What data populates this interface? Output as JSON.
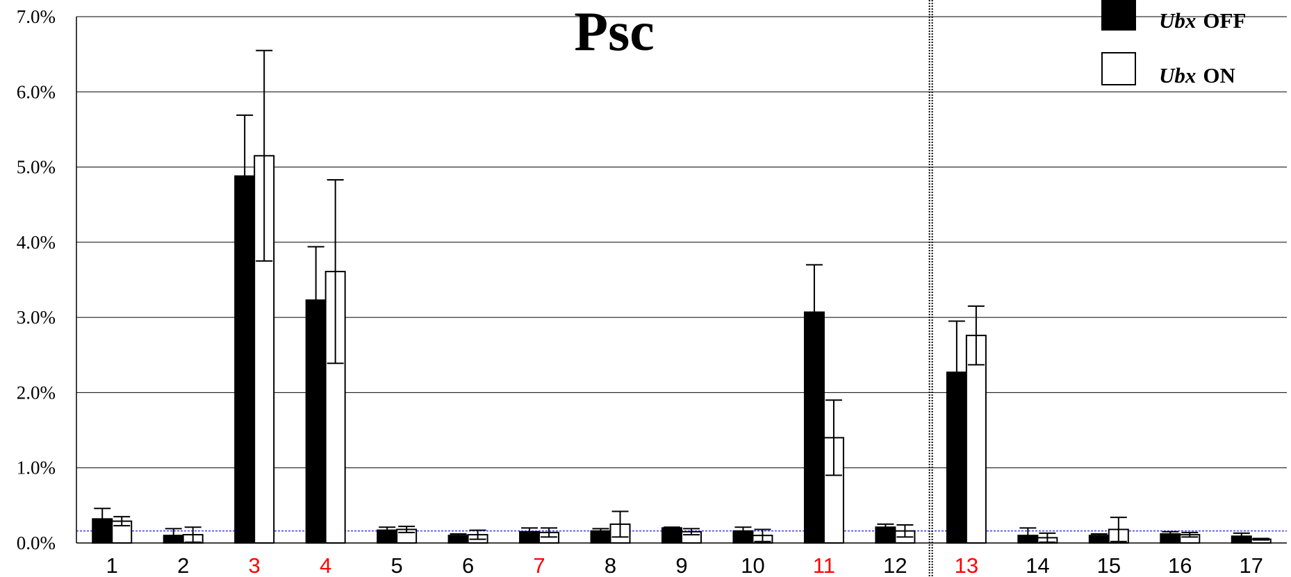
{
  "chart_data": {
    "type": "bar",
    "title": "Psc",
    "xlabel": "",
    "ylabel": "",
    "ylim": [
      0,
      7.0
    ],
    "y_ticks": [
      "0.0%",
      "1.0%",
      "2.0%",
      "3.0%",
      "4.0%",
      "5.0%",
      "6.0%",
      "7.0%"
    ],
    "grid": true,
    "categories": [
      "1",
      "2",
      "3",
      "4",
      "5",
      "6",
      "7",
      "8",
      "9",
      "10",
      "11",
      "12",
      "13",
      "14",
      "15",
      "16",
      "17"
    ],
    "highlighted_categories": [
      "3",
      "4",
      "7",
      "11",
      "13"
    ],
    "highlight_color": "#ff0000",
    "divider_after_category": "12",
    "threshold_line": 0.16,
    "threshold_color": "#0000ff",
    "legend_position": "top-right",
    "legend": [
      {
        "gene": "Ubx",
        "state": "OFF",
        "fill": "#000000"
      },
      {
        "gene": "Ubx",
        "state": "ON",
        "fill": "#ffffff"
      }
    ],
    "series": [
      {
        "name": "Ubx OFF",
        "fill": "#000000",
        "values": [
          0.32,
          0.1,
          4.88,
          3.23,
          0.17,
          0.1,
          0.15,
          0.16,
          0.2,
          0.16,
          3.07,
          0.21,
          2.27,
          0.1,
          0.1,
          0.12,
          0.09
        ],
        "errors": [
          0.14,
          0.09,
          0.81,
          0.71,
          0.04,
          0.02,
          0.05,
          0.03,
          0.01,
          0.05,
          0.63,
          0.04,
          0.68,
          0.1,
          0.02,
          0.03,
          0.04
        ]
      },
      {
        "name": "Ubx ON",
        "fill": "#ffffff",
        "values": [
          0.29,
          0.11,
          5.15,
          3.61,
          0.18,
          0.11,
          0.14,
          0.25,
          0.15,
          0.1,
          1.4,
          0.16,
          2.76,
          0.07,
          0.18,
          0.11,
          0.05
        ],
        "errors": [
          0.06,
          0.1,
          1.4,
          1.22,
          0.04,
          0.06,
          0.06,
          0.17,
          0.04,
          0.08,
          0.5,
          0.08,
          0.39,
          0.06,
          0.16,
          0.03,
          0.01
        ]
      }
    ]
  }
}
